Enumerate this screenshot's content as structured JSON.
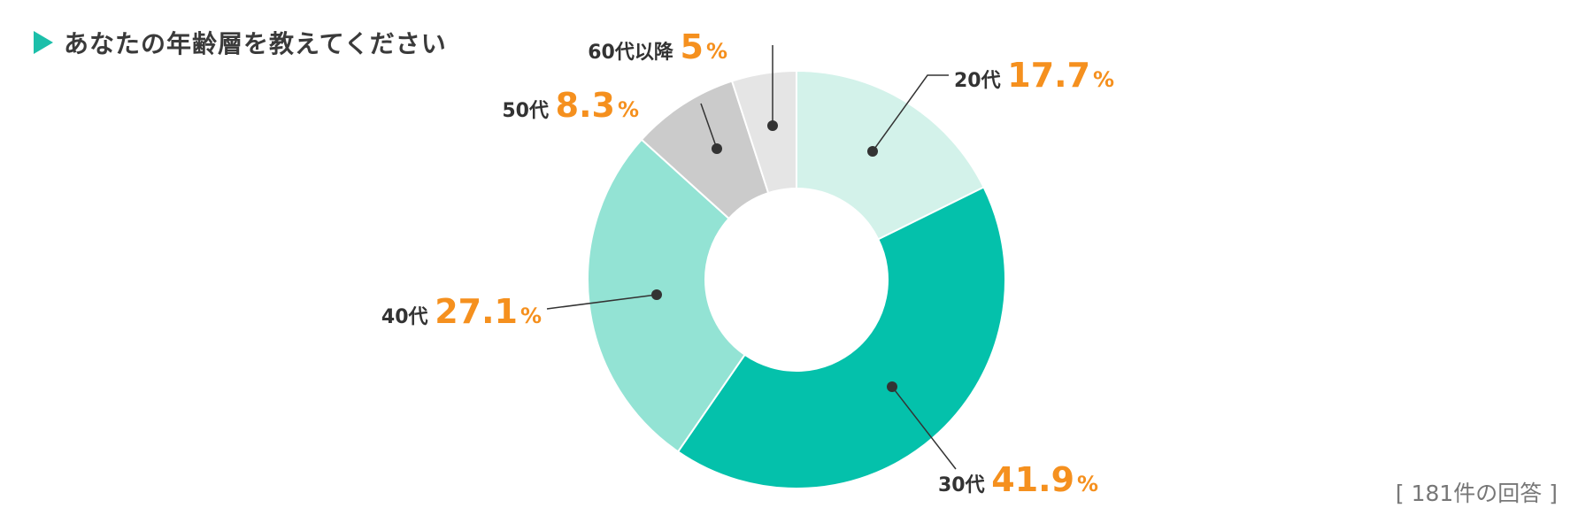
{
  "title": "あなたの年齢層を教えてください",
  "total_count": "[ 181件の回答 ]",
  "colors": {
    "title_marker": "#1cbfaa",
    "title_text": "#3a3a3a",
    "category_text": "#333333",
    "value_text": "#f5901e",
    "leader_line": "#333333",
    "slice_border": "#ffffff"
  },
  "chart_data": {
    "type": "pie",
    "donut": true,
    "unit": "%",
    "start": "top",
    "direction": "clockwise",
    "slices": [
      {
        "label": "20代",
        "value": 17.7,
        "value_text": "17.7",
        "color": "#d3f2ea"
      },
      {
        "label": "30代",
        "value": 41.9,
        "value_text": "41.9",
        "color": "#04c1ab"
      },
      {
        "label": "40代",
        "value": 27.1,
        "value_text": "27.1",
        "color": "#93e3d4"
      },
      {
        "label": "50代",
        "value": 8.3,
        "value_text": "8.3",
        "color": "#cbcbcb"
      },
      {
        "label": "60代以降",
        "value": 5,
        "value_text": "5",
        "color": "#e5e5e5"
      }
    ]
  }
}
